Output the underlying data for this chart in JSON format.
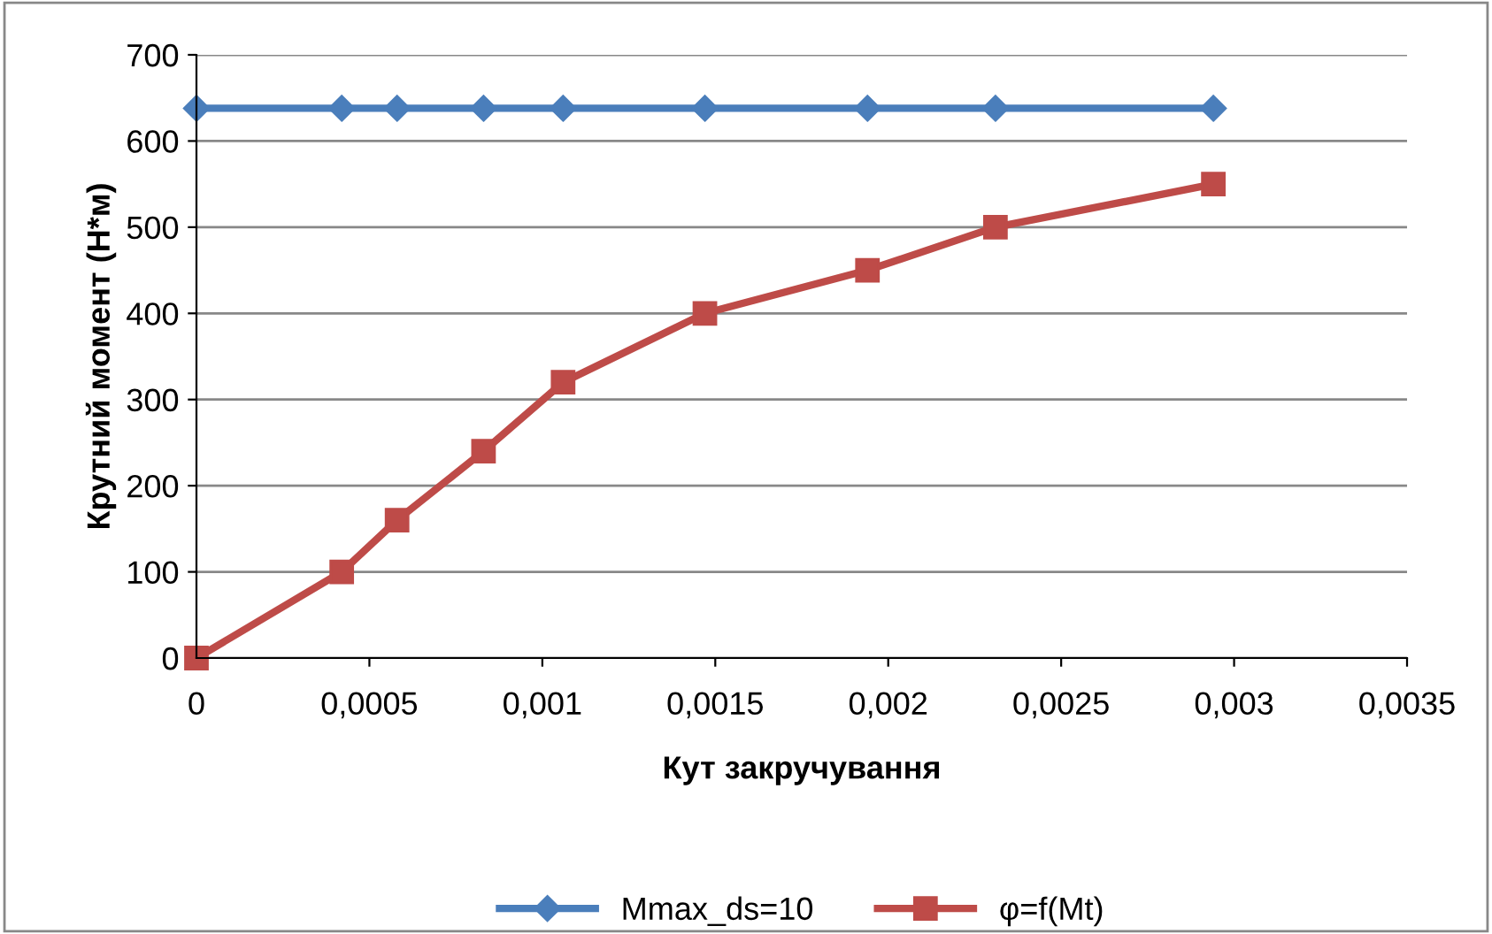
{
  "chart_data": {
    "type": "line",
    "xlabel": "Кут закручування",
    "ylabel": "Крутний момент (Н*м)",
    "x": [
      0,
      0.00042,
      0.00058,
      0.00083,
      0.00106,
      0.00147,
      0.00194,
      0.00231,
      0.00294
    ],
    "series": [
      {
        "name": "Mmax_ds=10",
        "color": "#4a7ebb",
        "marker": "diamond",
        "values": [
          638,
          638,
          638,
          638,
          638,
          638,
          638,
          638,
          638
        ]
      },
      {
        "name": "φ=f(Mt)",
        "color": "#be4b48",
        "marker": "square",
        "values": [
          0,
          100,
          160,
          240,
          320,
          400,
          450,
          500,
          550
        ]
      }
    ],
    "xlim": [
      0,
      0.0035
    ],
    "xticks": [
      0,
      {
        "value": 0.0005,
        "label": "0,0005"
      },
      {
        "value": 0.001,
        "label": "0,001"
      },
      {
        "value": 0.0015,
        "label": "0,0015"
      },
      {
        "value": 0.002,
        "label": "0,002"
      },
      {
        "value": 0.0025,
        "label": "0,0025"
      },
      {
        "value": 0.003,
        "label": "0,003"
      },
      {
        "value": 0.0035,
        "label": "0,0035"
      }
    ],
    "ylim": [
      0,
      700
    ],
    "yticks": [
      0,
      100,
      200,
      300,
      400,
      500,
      600,
      700
    ],
    "grid": "y",
    "legend": "bottom",
    "line_style": "solid"
  }
}
